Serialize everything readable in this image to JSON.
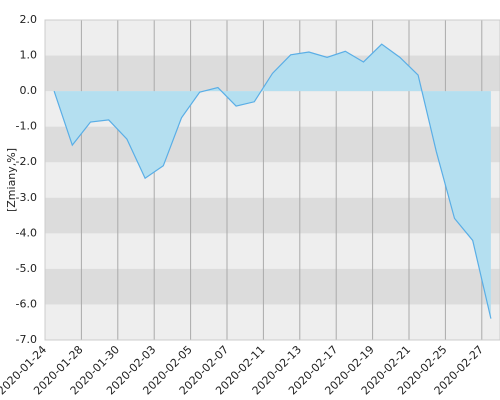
{
  "chart_data": {
    "type": "area",
    "y_label": "[Zmiany,%]",
    "categories": [
      "2020-01-24",
      null,
      "2020-01-28",
      null,
      "2020-01-30",
      null,
      "2020-02-03",
      null,
      "2020-02-05",
      null,
      "2020-02-07",
      null,
      "2020-02-11",
      null,
      "2020-02-13",
      null,
      "2020-02-17",
      null,
      "2020-02-19",
      null,
      "2020-02-21",
      null,
      "2020-02-25",
      null,
      "2020-02-27"
    ],
    "values": [
      0.0,
      -1.52,
      -0.87,
      -0.81,
      -1.35,
      -2.45,
      -2.1,
      -0.75,
      -0.03,
      0.1,
      -0.42,
      -0.3,
      0.5,
      1.02,
      1.1,
      0.95,
      1.12,
      0.82,
      1.32,
      0.95,
      0.45,
      -1.7,
      -3.58,
      -4.2,
      -6.4
    ],
    "color": "#5aaee6",
    "fill": "#b4dff0",
    "ylim": [
      -7,
      2
    ],
    "yticks": [
      {
        "value": -7,
        "label": "-7.0"
      },
      {
        "value": -6,
        "label": "-6.0"
      },
      {
        "value": -5,
        "label": "-5.0"
      },
      {
        "value": -4,
        "label": "-4.0"
      },
      {
        "value": -3,
        "label": "-3.0"
      },
      {
        "value": -2,
        "label": "-2.0"
      },
      {
        "value": -1,
        "label": "-1.0"
      },
      {
        "value": 0,
        "label": "0.0"
      },
      {
        "value": 1,
        "label": "1.0"
      },
      {
        "value": 2,
        "label": "2.0"
      }
    ],
    "grid": true
  }
}
